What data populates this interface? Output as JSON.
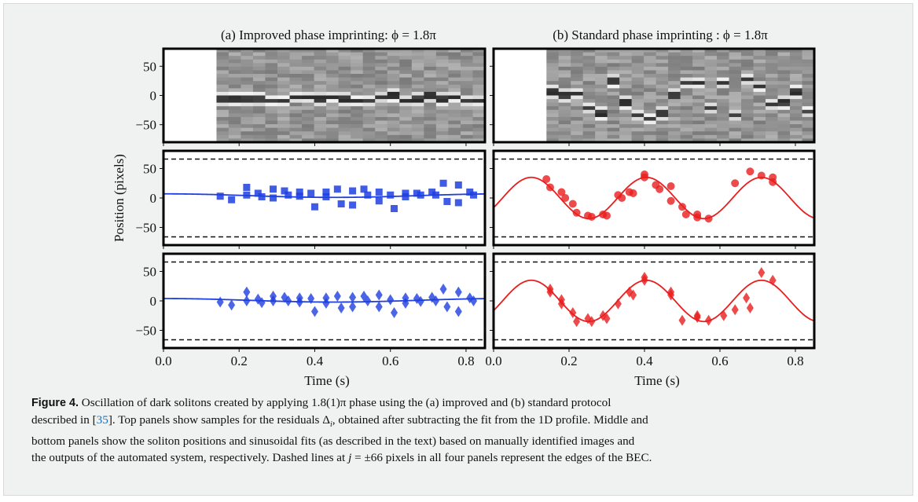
{
  "panels": {
    "a_title": "(a) Improved phase imprinting: ϕ = 1.8π",
    "b_title": "(b) Standard phase imprinting : ϕ = 1.8π"
  },
  "axes": {
    "ylabel": "Position (pixels)",
    "xlabel": "Time (s)",
    "yticks": [
      "50",
      "0",
      "−50"
    ],
    "xticks": [
      "0.0",
      "0.2",
      "0.4",
      "0.6",
      "0.8"
    ]
  },
  "caption": {
    "label": "Figure 4.",
    "line1": "Oscillation of dark solitons created by applying 1.8(1)π phase using the (a) improved and (b) standard protocol",
    "line2a": "described in [",
    "ref": "35",
    "line2b": "]. Top panels show samples for the residuals Δ",
    "sub_i": "i",
    "line2c": ", obtained after subtracting the fit from the 1D profile. Middle and",
    "line3": "bottom panels show the soliton positions and sinusoidal fits (as described in the text) based on manually identified images and",
    "line4a": "the outputs of the automated system, respectively. Dashed lines at ",
    "line4j": "j",
    "line4b": " = ±66 pixels in all four panels represent the edges of the BEC."
  },
  "colors": {
    "manual_a": "#1f3fe0",
    "manual_b": "#e81e1e",
    "dashed": "#111111"
  },
  "chart_data": [
    {
      "type": "heatmap",
      "panel": "a-top",
      "x_range": [
        0.0,
        0.85
      ],
      "y_range": [
        -80,
        80
      ],
      "image_start_time": 0.14,
      "dark_soliton_position_approx": -5
    },
    {
      "type": "heatmap",
      "panel": "b-top",
      "x_range": [
        0.0,
        0.85
      ],
      "y_range": [
        -80,
        80
      ],
      "image_start_time": 0.14
    },
    {
      "type": "scatter",
      "panel": "a-middle",
      "marker": "square",
      "color": "#1f3fe0",
      "x": [
        0.15,
        0.18,
        0.22,
        0.22,
        0.25,
        0.26,
        0.29,
        0.29,
        0.32,
        0.33,
        0.36,
        0.36,
        0.39,
        0.4,
        0.43,
        0.43,
        0.46,
        0.47,
        0.5,
        0.5,
        0.53,
        0.54,
        0.57,
        0.57,
        0.6,
        0.61,
        0.64,
        0.64,
        0.67,
        0.68,
        0.71,
        0.72,
        0.74,
        0.75,
        0.78,
        0.78,
        0.81,
        0.82
      ],
      "y": [
        3,
        -3,
        18,
        5,
        8,
        2,
        15,
        0,
        12,
        5,
        10,
        3,
        8,
        -15,
        10,
        2,
        15,
        -10,
        12,
        -12,
        15,
        5,
        10,
        -5,
        5,
        -18,
        8,
        2,
        8,
        5,
        10,
        5,
        25,
        -6,
        22,
        -8,
        10,
        5
      ],
      "fit": {
        "amplitude": 3,
        "offset": 4,
        "period": 0.9,
        "phase": 0.0
      },
      "hlines": [
        66,
        -66
      ],
      "ylim": [
        -80,
        80
      ],
      "xlim": [
        0.0,
        0.85
      ]
    },
    {
      "type": "scatter",
      "panel": "a-bottom",
      "marker": "diamond",
      "color": "#1f3fe0",
      "x": [
        0.15,
        0.18,
        0.22,
        0.22,
        0.25,
        0.26,
        0.29,
        0.29,
        0.32,
        0.33,
        0.36,
        0.36,
        0.39,
        0.4,
        0.43,
        0.43,
        0.46,
        0.47,
        0.5,
        0.5,
        0.53,
        0.54,
        0.57,
        0.57,
        0.6,
        0.61,
        0.64,
        0.64,
        0.67,
        0.68,
        0.71,
        0.72,
        0.74,
        0.75,
        0.78,
        0.78,
        0.81,
        0.82
      ],
      "y": [
        -2,
        -7,
        15,
        0,
        3,
        -3,
        8,
        0,
        6,
        0,
        5,
        -2,
        4,
        -18,
        5,
        -4,
        8,
        -12,
        6,
        -10,
        8,
        0,
        10,
        -10,
        2,
        -20,
        5,
        -4,
        4,
        -1,
        6,
        0,
        20,
        -10,
        15,
        -18,
        5,
        0
      ],
      "fit": {
        "amplitude": 3,
        "offset": 1,
        "period": 0.9,
        "phase": 0.0
      },
      "hlines": [
        66,
        -66
      ],
      "ylim": [
        -80,
        80
      ],
      "xlim": [
        0.0,
        0.85
      ]
    },
    {
      "type": "scatter",
      "panel": "b-middle",
      "marker": "circle",
      "color": "#e81e1e",
      "x": [
        0.14,
        0.15,
        0.18,
        0.19,
        0.21,
        0.22,
        0.25,
        0.26,
        0.29,
        0.3,
        0.33,
        0.34,
        0.36,
        0.37,
        0.4,
        0.4,
        0.43,
        0.44,
        0.47,
        0.47,
        0.5,
        0.51,
        0.54,
        0.54,
        0.57,
        0.64,
        0.68,
        0.71,
        0.74,
        0.74
      ],
      "y": [
        32,
        18,
        10,
        0,
        -10,
        -25,
        -30,
        -32,
        -28,
        -30,
        5,
        0,
        10,
        8,
        40,
        35,
        22,
        15,
        20,
        -5,
        -15,
        -28,
        -28,
        -33,
        -35,
        25,
        45,
        38,
        35,
        27
      ],
      "fit": {
        "amplitude": 35,
        "offset": 0,
        "period": 0.305,
        "phase": 0.1
      },
      "hlines": [
        66,
        -66
      ],
      "ylim": [
        -80,
        80
      ],
      "xlim": [
        0.0,
        0.85
      ]
    },
    {
      "type": "scatter",
      "panel": "b-bottom",
      "marker": "diamond",
      "color": "#e81e1e",
      "x": [
        0.15,
        0.15,
        0.18,
        0.18,
        0.21,
        0.22,
        0.25,
        0.26,
        0.29,
        0.3,
        0.33,
        0.36,
        0.37,
        0.4,
        0.4,
        0.47,
        0.47,
        0.5,
        0.54,
        0.54,
        0.57,
        0.61,
        0.64,
        0.67,
        0.68,
        0.71,
        0.74
      ],
      "y": [
        20,
        15,
        2,
        -5,
        -20,
        -35,
        -30,
        -35,
        -25,
        -30,
        -5,
        15,
        10,
        40,
        35,
        15,
        10,
        -33,
        -25,
        -28,
        -33,
        -25,
        -15,
        5,
        -12,
        48,
        35
      ],
      "fit": {
        "amplitude": 35,
        "offset": 0,
        "period": 0.305,
        "phase": 0.1
      },
      "hlines": [
        66,
        -66
      ],
      "ylim": [
        -80,
        80
      ],
      "xlim": [
        0.0,
        0.85
      ]
    }
  ]
}
